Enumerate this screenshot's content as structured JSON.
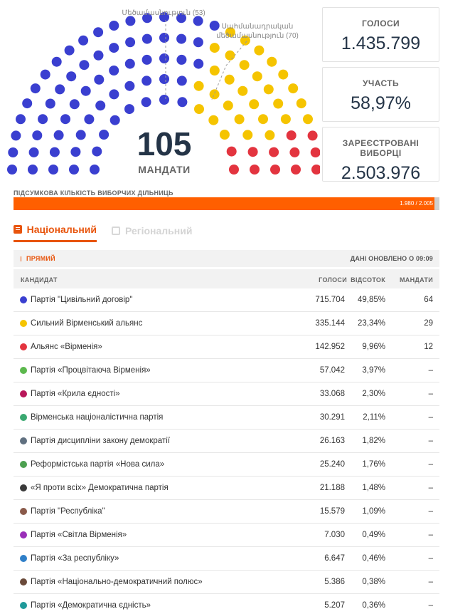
{
  "chart_data": {
    "type": "parliament",
    "total_seats": 105,
    "total_seats_caption": "МАНДАТИ",
    "parties": [
      {
        "name": "Партія \"Цивільний договір\"",
        "seats": 64,
        "color": "#3a3fd0"
      },
      {
        "name": "Сильний Вірменський альянс",
        "seats": 29,
        "color": "#f5c400"
      },
      {
        "name": "Альянс «Вірменія»",
        "seats": 12,
        "color": "#e3343f"
      }
    ],
    "annotations": [
      {
        "text": "Մեծամասնություն (53)"
      },
      {
        "text": "Սահմանադրական",
        "text2": "մեծամասնություն (70)"
      }
    ]
  },
  "stats": {
    "votes": {
      "label": "ГОЛОСИ",
      "value": "1.435.799"
    },
    "turnout": {
      "label": "УЧАСТЬ",
      "value": "58,97%"
    },
    "registered": {
      "label": "ЗАРЕЄСТРОВАНІ ВИБОРЦІ",
      "value": "2.503.976"
    }
  },
  "precincts": {
    "label": "ПІДСУМКОВА КІЛЬКІСТЬ ВИБОРЧИХ ДІЛЬНИЦЬ",
    "counted": 1980,
    "total": 2005,
    "text": "1.980 / 2.005",
    "fill_color": "#ff5f00"
  },
  "tabs": {
    "national": "Національний",
    "regional": "Регіональний"
  },
  "table": {
    "live_label": "ПРЯМИЙ",
    "updated": "ДАНІ ОНОВЛЕНО О 09:09",
    "columns": {
      "candidate": "КАНДИДАТ",
      "votes": "ГОЛОСИ",
      "percent": "ВІДСОТОК",
      "seats": "МАНДАТИ"
    },
    "rows": [
      {
        "name": "Партія \"Цивільний договір\"",
        "votes": "715.704",
        "percent": "49,85%",
        "seats": "64",
        "color": "#3a3fd0"
      },
      {
        "name": "Сильний Вірменський альянс",
        "votes": "335.144",
        "percent": "23,34%",
        "seats": "29",
        "color": "#f5c400"
      },
      {
        "name": "Альянс «Вірменія»",
        "votes": "142.952",
        "percent": "9,96%",
        "seats": "12",
        "color": "#e3343f"
      },
      {
        "name": "Партія «Процвітаюча Вірменія»",
        "votes": "57.042",
        "percent": "3,97%",
        "seats": "–",
        "color": "#5cb84d"
      },
      {
        "name": "Партія «Крила єдності»",
        "votes": "33.068",
        "percent": "2,30%",
        "seats": "–",
        "color": "#b8175a"
      },
      {
        "name": "Вірменська націоналістична партія",
        "votes": "30.291",
        "percent": "2,11%",
        "seats": "–",
        "color": "#3aa870"
      },
      {
        "name": "Партія дисципліни закону демократії",
        "votes": "26.163",
        "percent": "1,82%",
        "seats": "–",
        "color": "#607080"
      },
      {
        "name": "Реформістська партія «Нова сила»",
        "votes": "25.240",
        "percent": "1,76%",
        "seats": "–",
        "color": "#4ca050"
      },
      {
        "name": "«Я проти всіх» Демократична партія",
        "votes": "21.188",
        "percent": "1,48%",
        "seats": "–",
        "color": "#3a3a3a"
      },
      {
        "name": "Партія \"Республіка\"",
        "votes": "15.579",
        "percent": "1,09%",
        "seats": "–",
        "color": "#8a5a4a"
      },
      {
        "name": "Партія «Світла Вірменія»",
        "votes": "7.030",
        "percent": "0,49%",
        "seats": "–",
        "color": "#9a2fb8"
      },
      {
        "name": "Партія «За республіку»",
        "votes": "6.647",
        "percent": "0,46%",
        "seats": "–",
        "color": "#2f7fc8"
      },
      {
        "name": "Партія «Національно-демократичний полюс»",
        "votes": "5.386",
        "percent": "0,38%",
        "seats": "–",
        "color": "#6a4a3a"
      },
      {
        "name": "Партія «Демократична єдність»",
        "votes": "5.207",
        "percent": "0,36%",
        "seats": "–",
        "color": "#1f9a9a"
      }
    ]
  }
}
